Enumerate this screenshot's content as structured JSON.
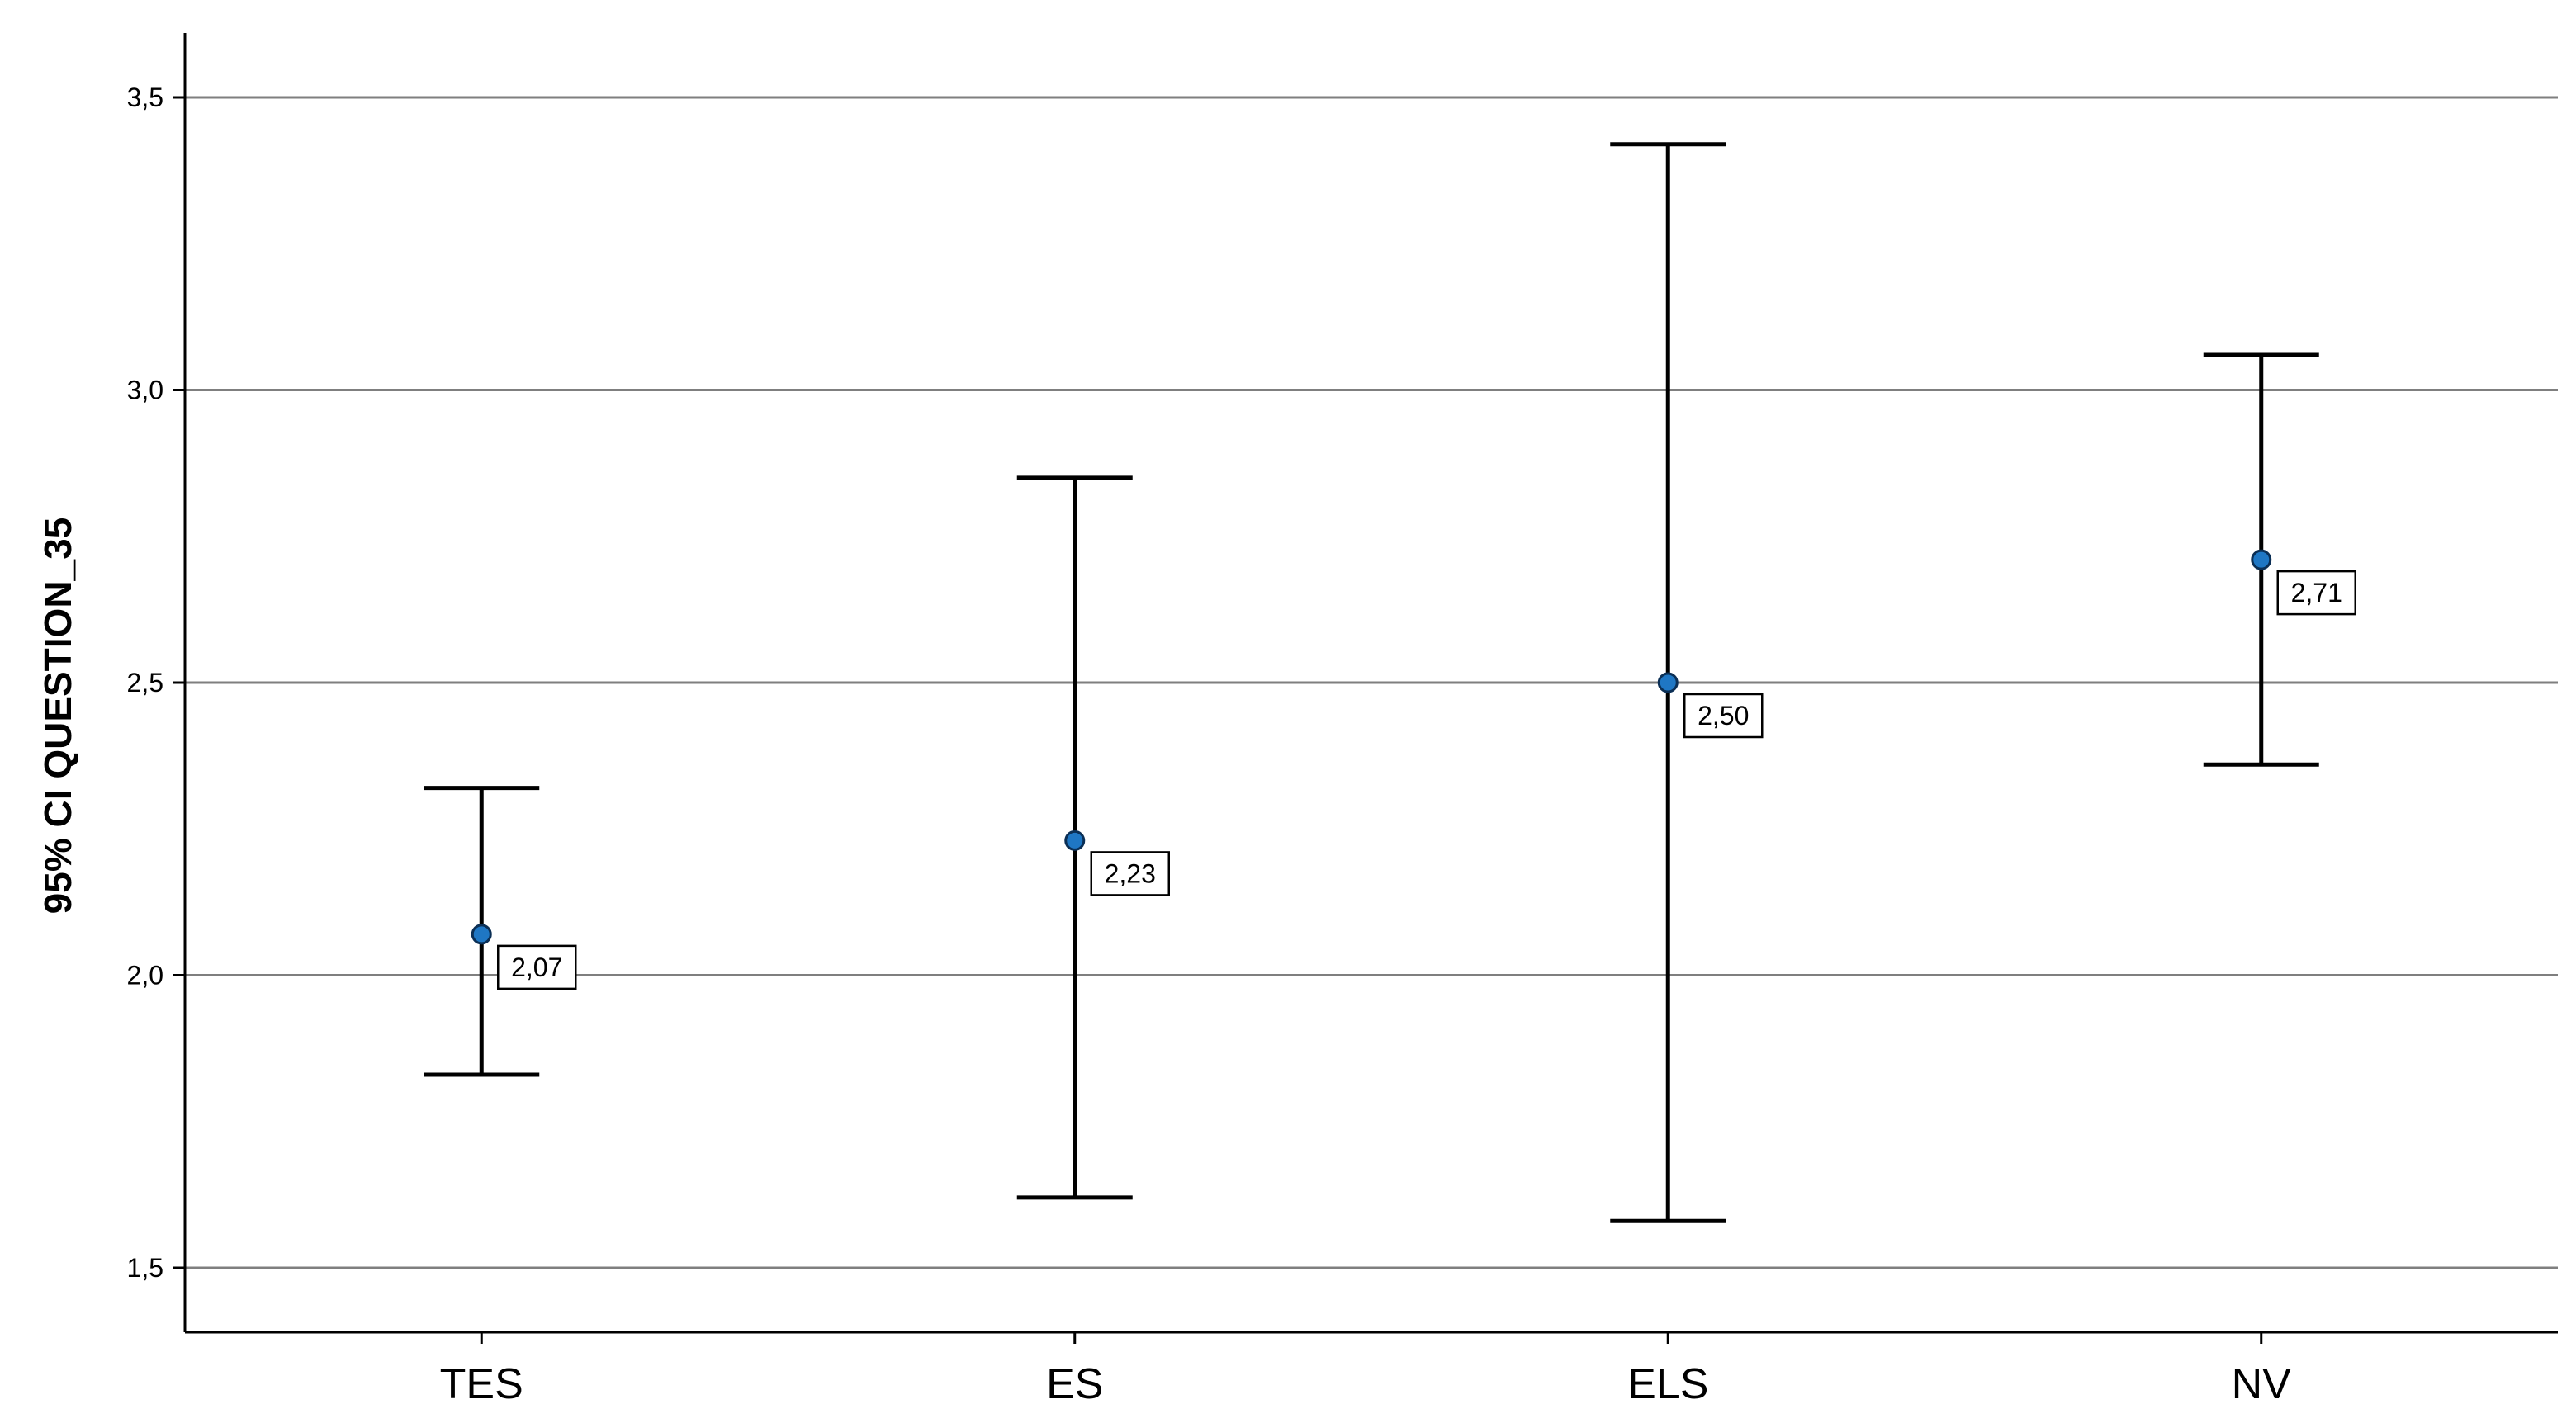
{
  "chart_data": {
    "type": "errorbar",
    "ylabel": "95% CI QUESTION_35",
    "xlabel": "",
    "ylim": [
      1.39,
      3.61
    ],
    "yticks": [
      1.5,
      2.0,
      2.5,
      3.0,
      3.5
    ],
    "ytick_labels": [
      "1,5",
      "2,0",
      "2,5",
      "3,0",
      "3,5"
    ],
    "grid": true,
    "categories": [
      "TES",
      "ES",
      "ELS",
      "NV"
    ],
    "means": [
      2.07,
      2.23,
      2.5,
      2.71
    ],
    "mean_labels": [
      "2,07",
      "2,23",
      "2,50",
      "2,71"
    ],
    "lower": [
      1.83,
      1.62,
      1.58,
      2.36
    ],
    "upper": [
      2.32,
      2.85,
      3.42,
      3.06
    ],
    "marker_color": "#1f77c4",
    "line_color": "#000000",
    "grid_color": "#7f7f7f"
  }
}
